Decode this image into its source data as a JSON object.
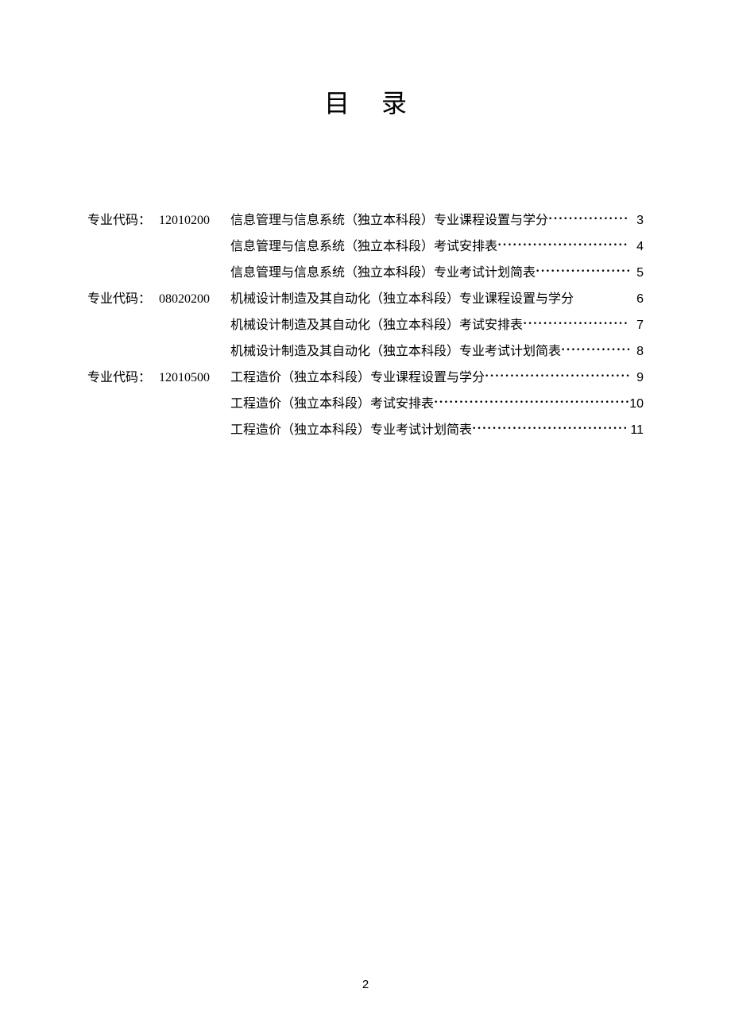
{
  "title": "目录",
  "code_label": "专业代码：",
  "sections": [
    {
      "code": "12010200",
      "entries": [
        {
          "title": "信息管理与信息系统（独立本科段）专业课程设置与学分",
          "page": "3",
          "leader": true
        },
        {
          "title": "信息管理与信息系统（独立本科段）考试安排表",
          "page": "4",
          "leader": true
        },
        {
          "title": "信息管理与信息系统（独立本科段）专业考试计划简表",
          "page": "5",
          "leader": true
        }
      ]
    },
    {
      "code": "08020200",
      "entries": [
        {
          "title": "机械设计制造及其自动化（独立本科段）专业课程设置与学分",
          "page": "6",
          "leader": false
        },
        {
          "title": "机械设计制造及其自动化（独立本科段）考试安排表",
          "page": "7",
          "leader": true
        },
        {
          "title": "机械设计制造及其自动化（独立本科段）专业考试计划简表",
          "page": "8",
          "leader": true
        }
      ]
    },
    {
      "code": "12010500",
      "entries": [
        {
          "title": "工程造价（独立本科段）专业课程设置与学分",
          "page": "9",
          "leader": true
        },
        {
          "title": "工程造价（独立本科段）考试安排表",
          "page": "10",
          "leader": true
        },
        {
          "title": "工程造价（独立本科段）专业考试计划简表",
          "page": "11",
          "leader": true
        }
      ]
    }
  ],
  "page_number": "2"
}
